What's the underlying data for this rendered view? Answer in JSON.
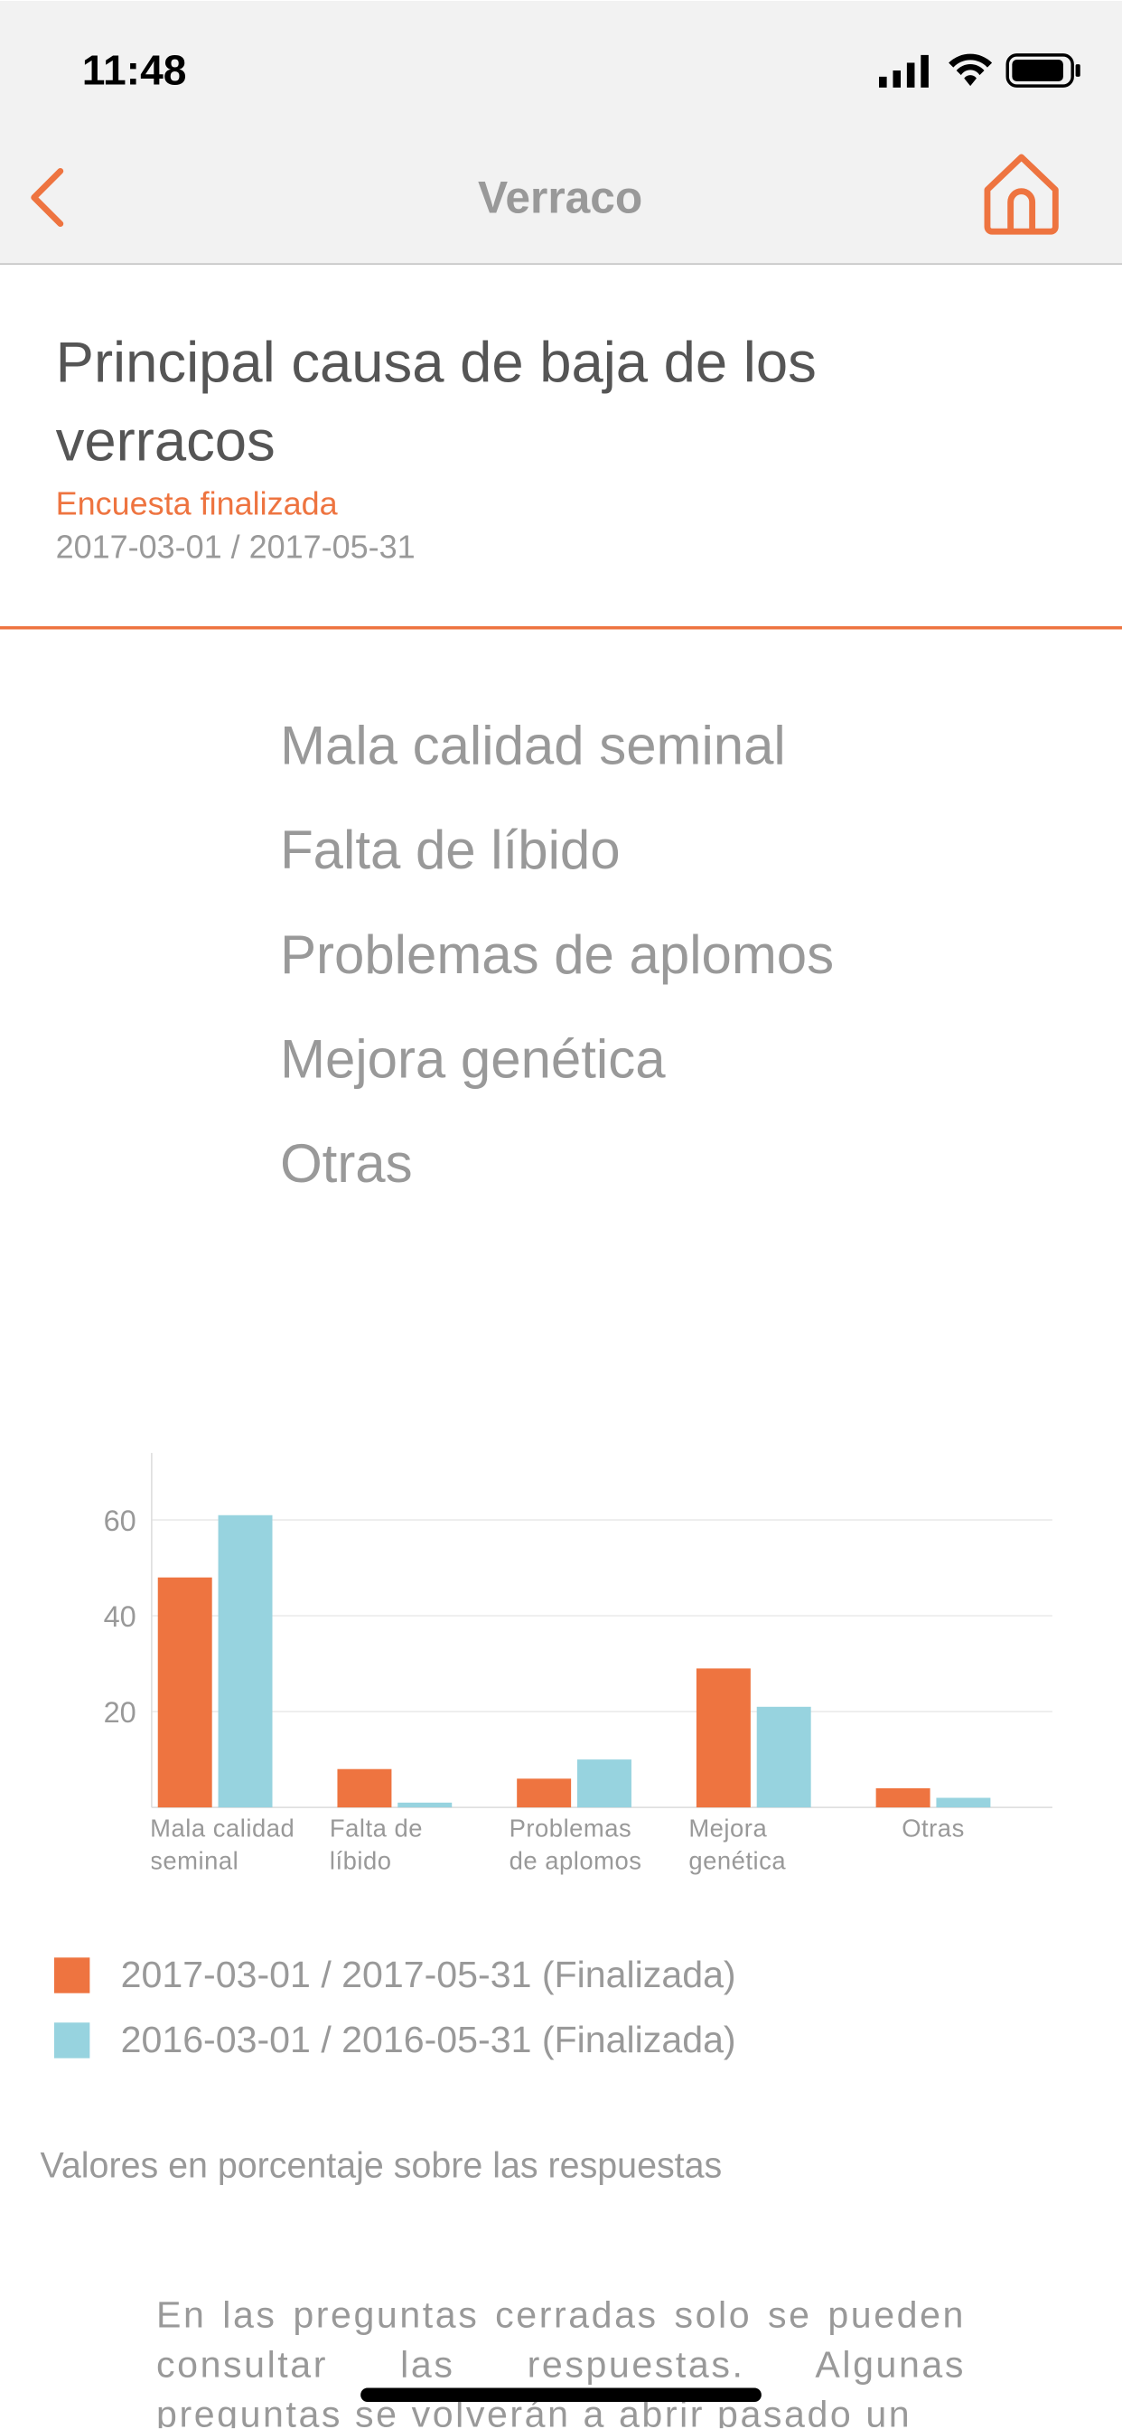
{
  "status_bar": {
    "time": "11:48"
  },
  "nav": {
    "title": "Verraco"
  },
  "header": {
    "title": "Principal causa de baja de los verracos",
    "status": "Encuesta finalizada",
    "period": "2017-03-01 / 2017-05-31"
  },
  "options": [
    "Mala calidad seminal",
    "Falta de líbido",
    "Problemas de aplomos",
    "Mejora genética",
    "Otras"
  ],
  "chart_data": {
    "type": "bar",
    "categories": [
      "Mala calidad seminal",
      "Falta de líbido",
      "Problemas de aplomos",
      "Mejora genética",
      "Otras"
    ],
    "series": [
      {
        "name": "2017-03-01 / 2017-05-31 (Finalizada)",
        "color": "#ee7440",
        "values": [
          48,
          8,
          6,
          29,
          4
        ]
      },
      {
        "name": "2016-03-01 / 2016-05-31 (Finalizada)",
        "color": "#97d3df",
        "values": [
          61,
          1,
          10,
          21,
          2
        ]
      }
    ],
    "ylim": [
      0,
      74
    ],
    "yticks": [
      20,
      40,
      60
    ],
    "grid": true
  },
  "note": "Valores en porcentaje sobre las respuestas",
  "footer_text": "En las preguntas cerradas solo se pueden consultar las respuestas. Algunas preguntas se volverán a abrir pasado un"
}
